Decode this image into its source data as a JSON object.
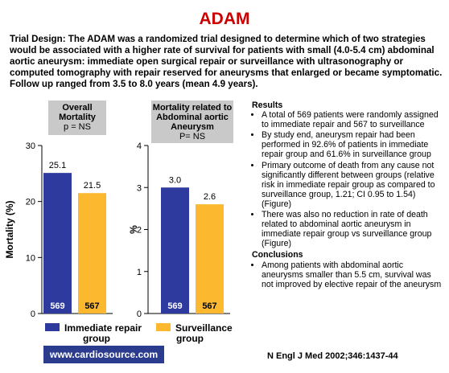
{
  "title": "ADAM",
  "trial_design": "Trial Design: The ADAM was a randomized trial designed to determine which of two strategies would be associated with a higher rate of survival for patients with small (4.0-5.4 cm) abdominal aortic aneurysm: immediate open surgical repair or surveillance with ultrasonography or computed tomography with repair reserved for aneurysms that enlarged or became symptomatic. Follow up ranged from 3.5 to 8.0 years (mean 4.9 years).",
  "colors": {
    "repair": "#2e3a9e",
    "surveillance": "#fcb82f",
    "title": "#cc0000",
    "box": "#c9c9c9",
    "banner": "#2b3b8e"
  },
  "chart_data": [
    {
      "type": "bar",
      "title": "Overall\nMortality",
      "subtitle": "p = NS",
      "ylabel": "Mortality (%)",
      "ylim": [
        0,
        30
      ],
      "yticks": [
        0,
        10,
        20,
        30
      ],
      "series": [
        {
          "name": "Immediate repair group",
          "values": [
            25.1
          ],
          "n": 569
        },
        {
          "name": "Surveillance group",
          "values": [
            21.5
          ],
          "n": 567
        }
      ]
    },
    {
      "type": "bar",
      "title": "Mortality related to\nAbdominal aortic\nAneurysm",
      "subtitle": "P= NS",
      "ylabel": "%",
      "ylim": [
        0,
        4
      ],
      "yticks": [
        0,
        1,
        2,
        3,
        4
      ],
      "series": [
        {
          "name": "Immediate repair group",
          "values": [
            3.0
          ],
          "n": 569
        },
        {
          "name": "Surveillance group",
          "values": [
            2.6
          ],
          "n": 567
        }
      ]
    }
  ],
  "legend": [
    {
      "label_line1": "Immediate repair",
      "label_line2": "group"
    },
    {
      "label_line1": "Surveillance",
      "label_line2": "group"
    }
  ],
  "results": {
    "heading": "Results",
    "items": [
      "A total of 569 patients were randomly assigned to immediate repair and 567 to surveillance",
      "By study end, aneurysm repair had been performed in 92.6% of patients in immediate repair group and 61.6% in surveillance group",
      "Primary outcome of death from any cause not significantly different between groups (relative risk in immediate repair group as compared to surveillance group, 1.21; CI 0.95 to 1.54) (Figure)",
      "There was also no reduction in rate of death related to abdominal aortic aneurysm in immediate repair group vs surveillance group (Figure)"
    ]
  },
  "conclusions": {
    "heading": "Conclusions",
    "items": [
      "Among patients with abdominal aortic aneurysms smaller than 5.5 cm, survival was not improved by elective repair of the aneurysm"
    ]
  },
  "footer": {
    "website": "www.cardiosource.com",
    "citation": "N Engl J Med 2002;346:1437-44"
  }
}
